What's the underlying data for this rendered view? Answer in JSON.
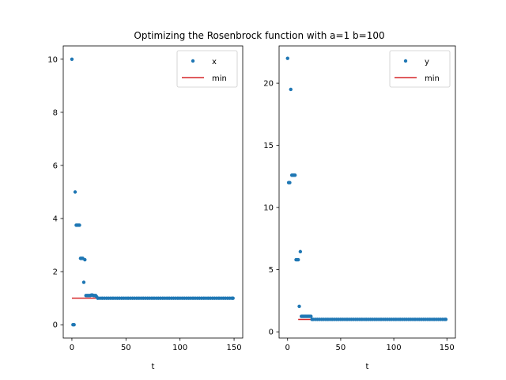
{
  "chart_data": {
    "type": "scatter",
    "title": "Optimizing the Rosenbrock function with a=1 b=100",
    "subplots": [
      {
        "xlabel": "t",
        "ylabel": "",
        "xlim": [
          -8,
          158
        ],
        "ylim": [
          -0.5,
          10.5
        ],
        "xticks": [
          0,
          50,
          100,
          150
        ],
        "yticks": [
          0,
          2,
          4,
          6,
          8,
          10
        ],
        "legend_position": "top-right",
        "grid": false,
        "scatter": {
          "name": "x",
          "color": "#1f77b4",
          "points": [
            [
              0,
              10
            ],
            [
              1,
              0
            ],
            [
              2,
              0
            ],
            [
              3,
              5
            ],
            [
              4,
              3.75
            ],
            [
              5,
              3.75
            ],
            [
              6,
              3.75
            ],
            [
              7,
              3.75
            ],
            [
              8,
              2.5
            ],
            [
              9,
              2.5
            ],
            [
              10,
              2.5
            ],
            [
              11,
              1.6
            ],
            [
              12,
              2.45
            ],
            [
              13,
              1.1
            ],
            [
              14,
              1.1
            ],
            [
              15,
              1.1
            ],
            [
              16,
              1.1
            ],
            [
              17,
              1.1
            ],
            [
              18,
              1.12
            ],
            [
              19,
              1.12
            ],
            [
              20,
              1.1
            ],
            [
              21,
              1.1
            ],
            [
              22,
              1.1
            ],
            [
              23,
              1.05
            ],
            [
              24,
              1.0
            ],
            [
              149,
              1.0
            ]
          ]
        },
        "line": {
          "name": "min",
          "color": "#d62728",
          "x": [
            0,
            149
          ],
          "y": [
            1,
            1
          ]
        }
      },
      {
        "xlabel": "t",
        "ylabel": "",
        "xlim": [
          -8,
          158
        ],
        "ylim": [
          -0.5,
          23
        ],
        "xticks": [
          0,
          50,
          100,
          150
        ],
        "yticks": [
          0,
          5,
          10,
          15,
          20
        ],
        "legend_position": "top-right",
        "grid": false,
        "scatter": {
          "name": "y",
          "color": "#1f77b4",
          "points": [
            [
              0,
              22
            ],
            [
              1,
              12
            ],
            [
              2,
              12
            ],
            [
              3,
              19.5
            ],
            [
              4,
              12.6
            ],
            [
              5,
              12.6
            ],
            [
              6,
              12.6
            ],
            [
              7,
              12.6
            ],
            [
              8,
              5.8
            ],
            [
              9,
              5.8
            ],
            [
              10,
              5.8
            ],
            [
              11,
              2.05
            ],
            [
              12,
              6.45
            ],
            [
              13,
              1.25
            ],
            [
              14,
              1.25
            ],
            [
              15,
              1.25
            ],
            [
              16,
              1.25
            ],
            [
              17,
              1.25
            ],
            [
              18,
              1.25
            ],
            [
              19,
              1.25
            ],
            [
              20,
              1.25
            ],
            [
              21,
              1.25
            ],
            [
              22,
              1.25
            ],
            [
              23,
              1.0
            ],
            [
              24,
              1.0
            ],
            [
              149,
              1.0
            ]
          ]
        },
        "line": {
          "name": "min",
          "color": "#d62728",
          "x": [
            10,
            149
          ],
          "y": [
            1,
            1
          ]
        }
      }
    ]
  }
}
